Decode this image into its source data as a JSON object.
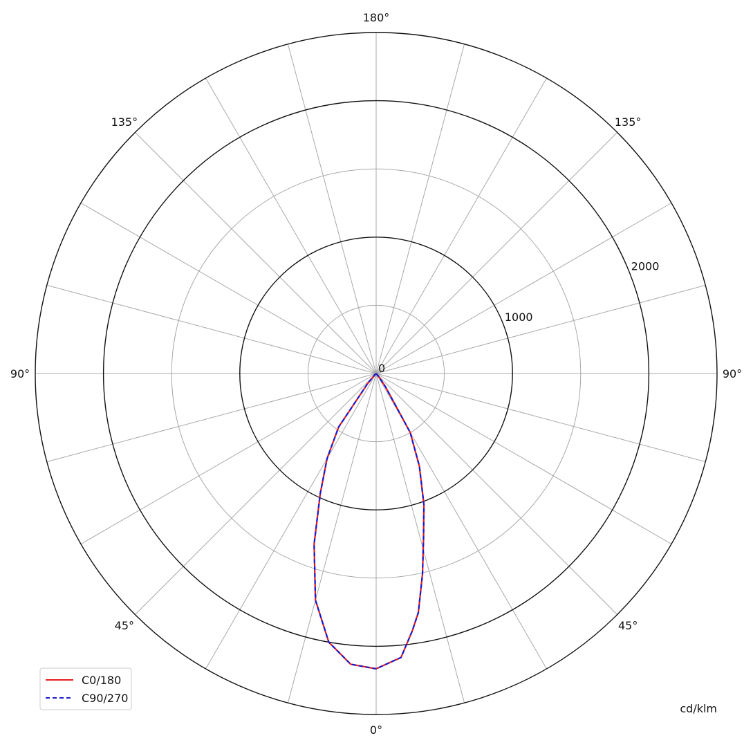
{
  "chart_data": {
    "type": "polar-line",
    "title": "",
    "unit_label": "cd/klm",
    "radial_range": [
      0,
      2500
    ],
    "radial_ticks": [
      0,
      1000,
      2000
    ],
    "radial_tick_labels": [
      "0",
      "1000",
      "2000"
    ],
    "radial_rings": [
      {
        "value": 500,
        "style": "minor"
      },
      {
        "value": 1000,
        "style": "major"
      },
      {
        "value": 1500,
        "style": "minor"
      },
      {
        "value": 2000,
        "style": "major"
      },
      {
        "value": 2500,
        "style": "major"
      }
    ],
    "spoke_step_deg": 15,
    "angle_labels": [
      {
        "angle": 0,
        "label": "0°"
      },
      {
        "angle": 45,
        "label": "45°"
      },
      {
        "angle": -45,
        "label": "45°"
      },
      {
        "angle": 90,
        "label": "90°"
      },
      {
        "angle": -90,
        "label": "90°"
      },
      {
        "angle": 135,
        "label": "135°"
      },
      {
        "angle": -135,
        "label": "135°"
      },
      {
        "angle": 180,
        "label": "180°"
      }
    ],
    "grid": true,
    "legend_position": "bottom-left",
    "series": [
      {
        "name": "C0/180",
        "color": "#e8191c",
        "dash": "solid",
        "gamma": [
          -90,
          -60,
          -45,
          -40,
          -35,
          -30,
          -25,
          -20,
          -15,
          -10,
          -5,
          0,
          5,
          8,
          10,
          13,
          16,
          20,
          25,
          30,
          35,
          40,
          50,
          60,
          90
        ],
        "values": [
          0,
          0,
          20,
          100,
          480,
          720,
          970,
          1330,
          1720,
          2000,
          2140,
          2165,
          2090,
          1905,
          1780,
          1510,
          1260,
          1025,
          750,
          500,
          120,
          30,
          0,
          0,
          0
        ]
      },
      {
        "name": "C90/270",
        "color": "#1a1acc",
        "dash": "dashed",
        "gamma": [
          -90,
          -60,
          -45,
          -40,
          -35,
          -30,
          -25,
          -20,
          -15,
          -10,
          -5,
          0,
          5,
          8,
          10,
          13,
          16,
          20,
          25,
          30,
          35,
          40,
          50,
          60,
          90
        ],
        "values": [
          0,
          0,
          20,
          100,
          480,
          720,
          970,
          1330,
          1720,
          2000,
          2140,
          2165,
          2090,
          1905,
          1780,
          1510,
          1260,
          1025,
          750,
          500,
          120,
          30,
          0,
          0,
          0
        ]
      }
    ]
  }
}
